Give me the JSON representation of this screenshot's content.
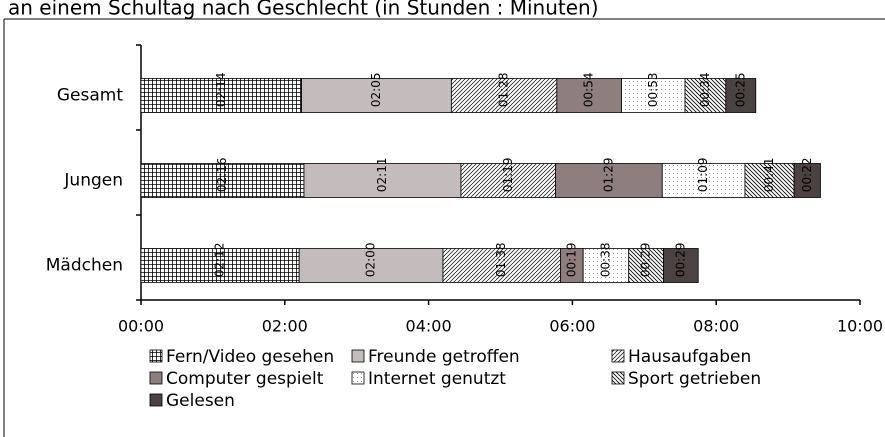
{
  "chart_data": {
    "type": "stacked_barh",
    "title": "an einem Schultag nach Geschlecht (in Stunden : Minuten)",
    "categories": [
      "Gesamt",
      "Jungen",
      "Mädchen"
    ],
    "series": [
      {
        "name": "Fern/Video gesehen",
        "color": "#ffffff",
        "pattern": "grid",
        "values": [
          134,
          136,
          132
        ],
        "value_labels": [
          "02:14",
          "02:16",
          "02:12"
        ]
      },
      {
        "name": "Freunde getroffen",
        "color": "#c4bcbc",
        "pattern": "solid",
        "values": [
          125,
          131,
          120
        ],
        "value_labels": [
          "02:05",
          "02:11",
          "02:00"
        ]
      },
      {
        "name": "Hausaufgaben",
        "color": "#ffffff",
        "pattern": "diagonal",
        "values": [
          88,
          79,
          98
        ],
        "value_labels": [
          "01:28",
          "01:19",
          "01:38"
        ]
      },
      {
        "name": "Computer gespielt",
        "color": "#8e7e7e",
        "pattern": "solid",
        "values": [
          54,
          89,
          19
        ],
        "value_labels": [
          "00:54",
          "01:29",
          "00:19"
        ]
      },
      {
        "name": "Internet genutzt",
        "color": "#ffffff",
        "pattern": "dots",
        "values": [
          53,
          69,
          38
        ],
        "value_labels": [
          "00:53",
          "01:09",
          "00:38"
        ]
      },
      {
        "name": "Sport getrieben",
        "color": "#ffffff",
        "pattern": "backdiagonal",
        "values": [
          34,
          41,
          29
        ],
        "value_labels": [
          "00:34",
          "00:41",
          "00:29"
        ]
      },
      {
        "name": "Gelesen",
        "color": "#4b4242",
        "pattern": "solid",
        "values": [
          25,
          22,
          29
        ],
        "value_labels": [
          "00:25",
          "00:22",
          "00:29"
        ]
      }
    ],
    "xlim": [
      0,
      600
    ],
    "xticks": [
      {
        "value": 0,
        "label": "00:00"
      },
      {
        "value": 120,
        "label": "02:00"
      },
      {
        "value": 240,
        "label": "04:00"
      },
      {
        "value": 360,
        "label": "06:00"
      },
      {
        "value": 480,
        "label": "08:00"
      },
      {
        "value": 600,
        "label": "10:00"
      }
    ],
    "grid": false,
    "legend": "bottom"
  }
}
